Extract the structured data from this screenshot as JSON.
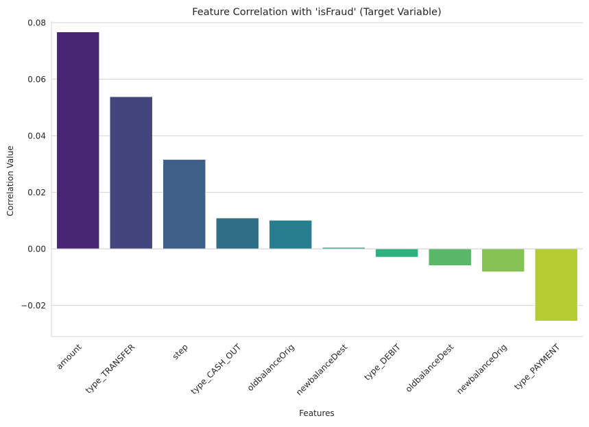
{
  "chart_data": {
    "type": "bar",
    "title": "Feature Correlation with 'isFraud' (Target Variable)",
    "xlabel": "Features",
    "ylabel": "Correlation Value",
    "categories": [
      "amount",
      "type_TRANSFER",
      "step",
      "type_CASH_OUT",
      "oldbalanceOrig",
      "newbalanceDest",
      "type_DEBIT",
      "oldbalanceDest",
      "newbalanceOrig",
      "type_PAYMENT"
    ],
    "values": [
      0.0767,
      0.0538,
      0.0316,
      0.0109,
      0.0101,
      0.0005,
      -0.0029,
      -0.0059,
      -0.0081,
      -0.0255
    ],
    "colors": [
      "#482475",
      "#45457d",
      "#3e5f88",
      "#2f6f85",
      "#287d8e",
      "#1fa187",
      "#2db27d",
      "#5ab769",
      "#86c253",
      "#b5cd33"
    ],
    "ylim": [
      -0.031,
      0.0805
    ],
    "yticks": [
      -0.02,
      0.0,
      0.02,
      0.04,
      0.06,
      0.08
    ],
    "ytick_labels": [
      "−0.02",
      "0.00",
      "0.02",
      "0.04",
      "0.06",
      "0.08"
    ],
    "grid": "horizontal"
  }
}
